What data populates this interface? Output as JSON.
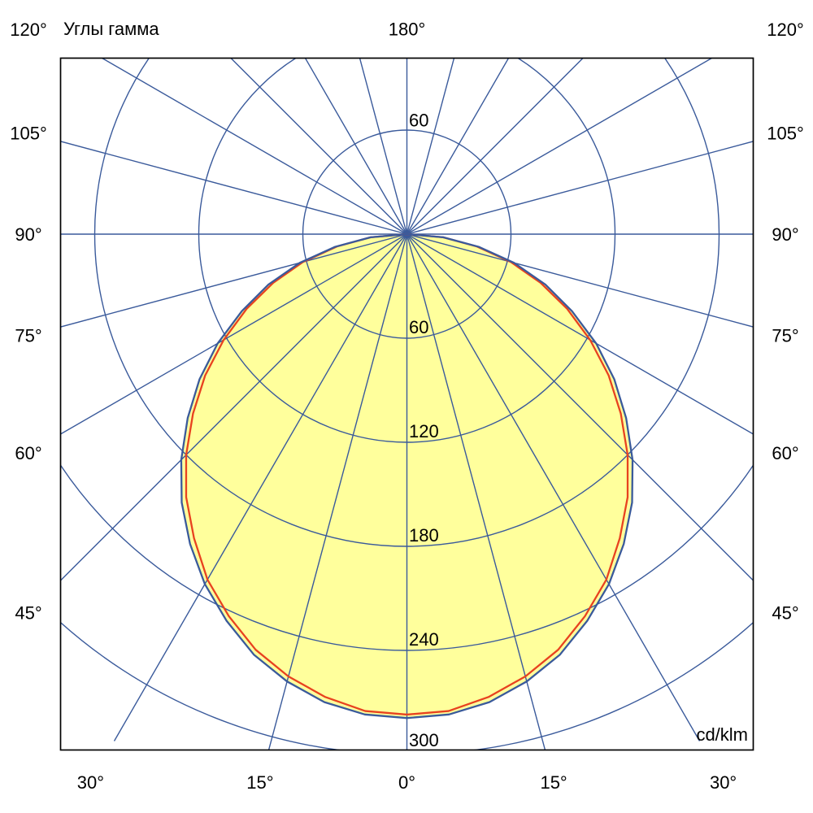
{
  "chart_data": {
    "type": "polar-photometric",
    "title": "Углы гамма",
    "unit": "cd/klm",
    "grid": {
      "ring_values": [
        60,
        120,
        180,
        240,
        300
      ],
      "ring_step": 60,
      "angle_step_deg": 15,
      "grid_on": true
    },
    "ring_labels_below": [
      "60",
      "120",
      "180",
      "240",
      "300"
    ],
    "ring_labels_above": [
      "60"
    ],
    "gamma_axis": {
      "top_label": "180°",
      "left_labels": [
        "120°",
        "105°",
        "90°",
        "75°",
        "60°",
        "45°"
      ],
      "left_angles_deg": [
        120,
        105,
        90,
        75,
        60,
        45
      ],
      "right_labels": [
        "120°",
        "105°",
        "90°",
        "75°",
        "60°",
        "45°"
      ],
      "right_angles_deg": [
        120,
        105,
        90,
        75,
        60,
        45
      ],
      "bottom_labels": [
        "30°",
        "15°",
        "0°",
        "15°",
        "30°"
      ],
      "bottom_angles_deg": [
        -30,
        -15,
        0,
        15,
        30
      ]
    },
    "series": [
      {
        "name": "blue-curve",
        "color": "#3a5a9b",
        "symmetric_mirror": true,
        "gamma_deg": [
          0,
          5,
          10,
          15,
          20,
          25,
          30,
          35,
          40,
          45,
          50,
          55,
          60,
          65,
          70,
          75,
          80,
          85,
          90
        ],
        "values_cd_per_klm": [
          279,
          278,
          274,
          267,
          258,
          246,
          233,
          218,
          202,
          184,
          165,
          146,
          126,
          105,
          85,
          64,
          42,
          21,
          0
        ]
      },
      {
        "name": "red-curve",
        "color": "#e8421f",
        "symmetric_mirror": true,
        "gamma_deg": [
          0,
          5,
          10,
          15,
          20,
          25,
          30,
          35,
          40,
          45,
          50,
          55,
          60,
          65,
          70,
          75,
          80,
          85,
          90
        ],
        "values_cd_per_klm": [
          277,
          276,
          271,
          264,
          255,
          243,
          230,
          214,
          198,
          180,
          161,
          142,
          122,
          102,
          82,
          62,
          41,
          21,
          0
        ]
      }
    ],
    "max_value_at_0deg": 279,
    "fill_color": "#ffff9c",
    "grid_color": "#3a5a9b",
    "border_color": "#000000",
    "legend": "none"
  }
}
